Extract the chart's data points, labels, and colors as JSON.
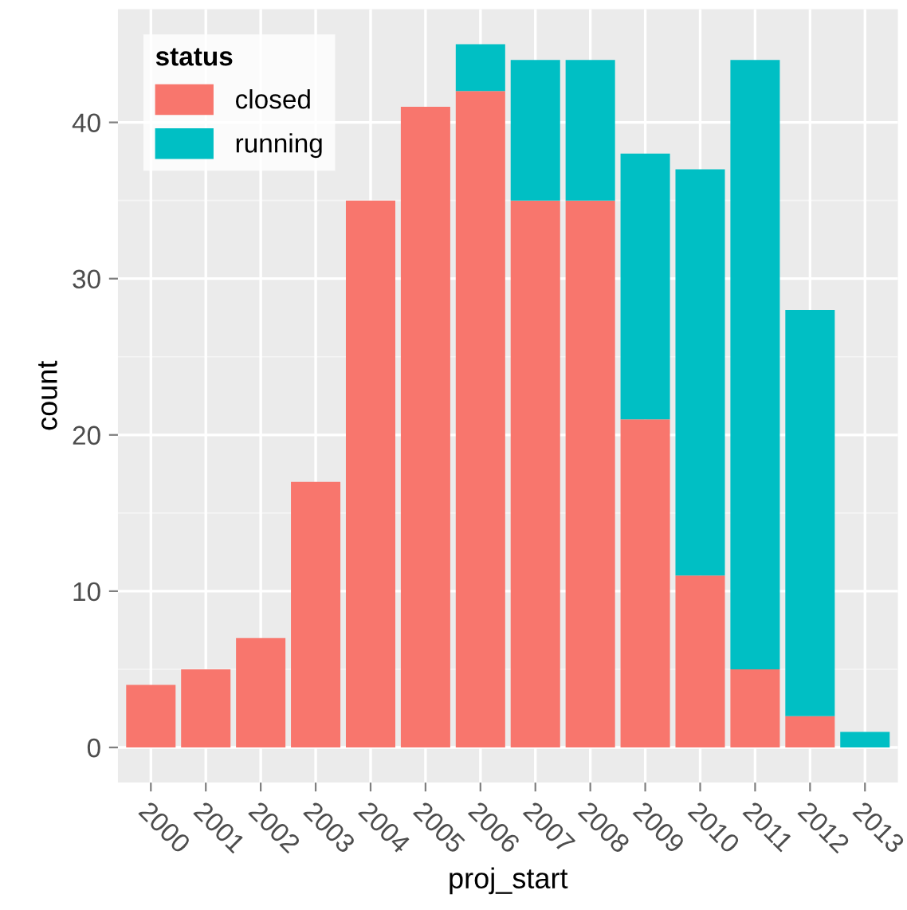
{
  "chart_data": {
    "type": "bar",
    "stacked": true,
    "xlabel": "proj_start",
    "ylabel": "count",
    "legend_title": "status",
    "legend": "top left",
    "grid": true,
    "categories": [
      "2000",
      "2001",
      "2002",
      "2003",
      "2004",
      "2005",
      "2006",
      "2007",
      "2008",
      "2009",
      "2010",
      "2011",
      "2012",
      "2013"
    ],
    "series": [
      {
        "name": "closed",
        "color": "#f8766d",
        "values": [
          4,
          5,
          7,
          17,
          35,
          41,
          42,
          35,
          35,
          21,
          11,
          5,
          2,
          0
        ]
      },
      {
        "name": "running",
        "color": "#00bfc4",
        "values": [
          0,
          0,
          0,
          0,
          0,
          0,
          3,
          9,
          9,
          17,
          26,
          39,
          26,
          1
        ]
      }
    ],
    "ylim": [
      -2.25,
      47.25
    ],
    "yticks": [
      0,
      10,
      20,
      30,
      40
    ]
  }
}
